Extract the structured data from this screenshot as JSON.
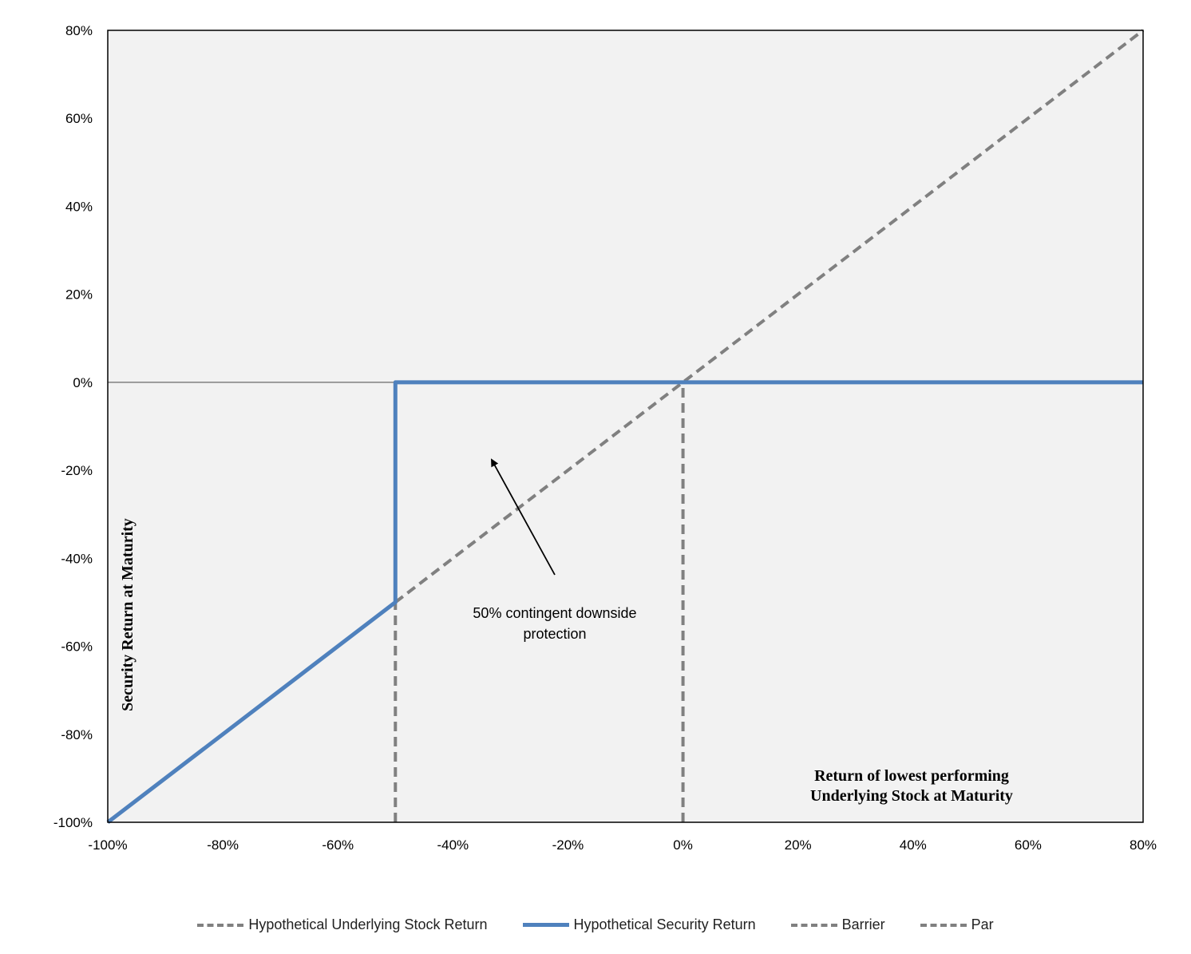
{
  "chart_data": {
    "type": "line",
    "x_label": "Return of lowest performing\nUnderlying Stock at Maturity",
    "y_label": "Security Return at Maturity",
    "xlim": [
      -1.0,
      0.8
    ],
    "ylim": [
      -1.0,
      0.8
    ],
    "x_ticks": [
      "-100%",
      "-80%",
      "-60%",
      "-40%",
      "-20%",
      "0%",
      "20%",
      "40%",
      "60%",
      "80%"
    ],
    "y_ticks": [
      "80%",
      "60%",
      "40%",
      "20%",
      "0%",
      "-20%",
      "-40%",
      "-60%",
      "-80%",
      "-100%"
    ],
    "grid": false,
    "legend_position": "bottom",
    "background_color": "#f2f2f2",
    "series": [
      {
        "name": "Hypothetical Underlying Stock Return",
        "style": "dashed",
        "color": "#808080",
        "points": [
          [
            -0.5,
            -0.5
          ],
          [
            0.8,
            0.8
          ]
        ]
      },
      {
        "name": "Hypothetical Security Return",
        "style": "solid",
        "color": "#4f81bd",
        "points": [
          [
            -1.0,
            -1.0
          ],
          [
            -0.5,
            -0.5
          ],
          [
            -0.5,
            0.0
          ],
          [
            0.8,
            0.0
          ]
        ]
      },
      {
        "name": "Barrier",
        "style": "dashed",
        "color": "#808080",
        "points": [
          [
            -0.5,
            -1.0
          ],
          [
            -0.5,
            -0.5
          ]
        ]
      },
      {
        "name": "Par",
        "style": "dashed",
        "color": "#808080",
        "points": [
          [
            0.0,
            -1.0
          ],
          [
            0.0,
            0.0
          ]
        ]
      }
    ],
    "annotations": [
      {
        "text": "50% contingent downside\nprotection"
      }
    ]
  }
}
